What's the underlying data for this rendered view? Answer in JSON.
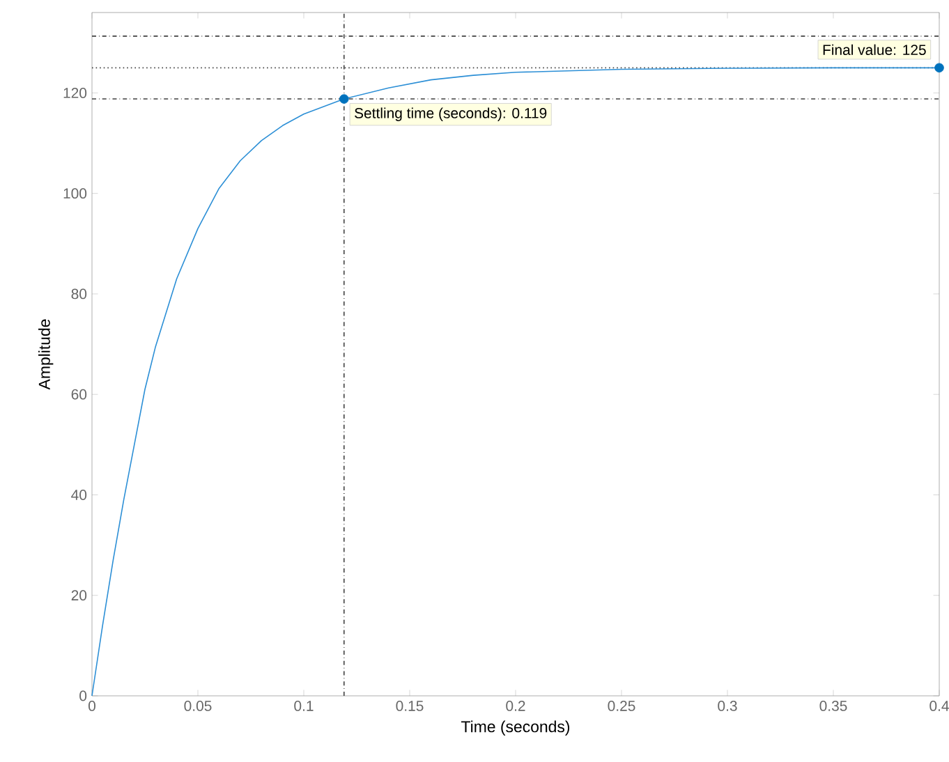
{
  "chart_data": {
    "type": "line",
    "xlabel": "Time (seconds)",
    "ylabel": "Amplitude",
    "xlim": [
      0,
      0.4
    ],
    "ylim": [
      0,
      136
    ],
    "xticks": [
      0,
      0.05,
      0.1,
      0.15,
      0.2,
      0.25,
      0.3,
      0.35,
      0.4
    ],
    "yticks": [
      0,
      20,
      40,
      60,
      80,
      100,
      120
    ],
    "grid": false,
    "line_style": "solid",
    "series": [
      {
        "marker": "none",
        "color": "#2c8fd6",
        "x": [
          0,
          0.005,
          0.01,
          0.015,
          0.02,
          0.025,
          0.03,
          0.04,
          0.05,
          0.06,
          0.07,
          0.08,
          0.09,
          0.1,
          0.119,
          0.14,
          0.16,
          0.18,
          0.2,
          0.25,
          0.3,
          0.35,
          0.4
        ],
        "values": [
          0,
          14,
          27,
          39,
          50,
          61,
          69.5,
          83,
          93,
          101,
          106.5,
          110.5,
          113.5,
          115.8,
          118.8,
          121,
          122.6,
          123.5,
          124.1,
          124.7,
          124.9,
          125,
          125
        ]
      },
      {
        "type": "scatter",
        "marker": "circle",
        "color": "#0072bd",
        "x": [
          0.119,
          0.4
        ],
        "values": [
          118.8,
          125
        ]
      }
    ],
    "ref_lines": [
      {
        "axis": "y",
        "value": 131.3,
        "color": "#404040",
        "line_style": "dashdot"
      },
      {
        "axis": "y",
        "value": 125,
        "color": "#404040",
        "line_style": "dotted"
      },
      {
        "axis": "y",
        "value": 118.8,
        "color": "#404040",
        "line_style": "dashdot"
      },
      {
        "axis": "x",
        "value": 0.119,
        "color": "#404040",
        "line_style": "dashdot"
      }
    ],
    "annotations": [
      {
        "text": "Settling time (seconds): 0.119",
        "x": 0.119,
        "y": 118.8
      },
      {
        "text": "Final value: 125",
        "x": 0.4,
        "y": 125
      }
    ]
  }
}
